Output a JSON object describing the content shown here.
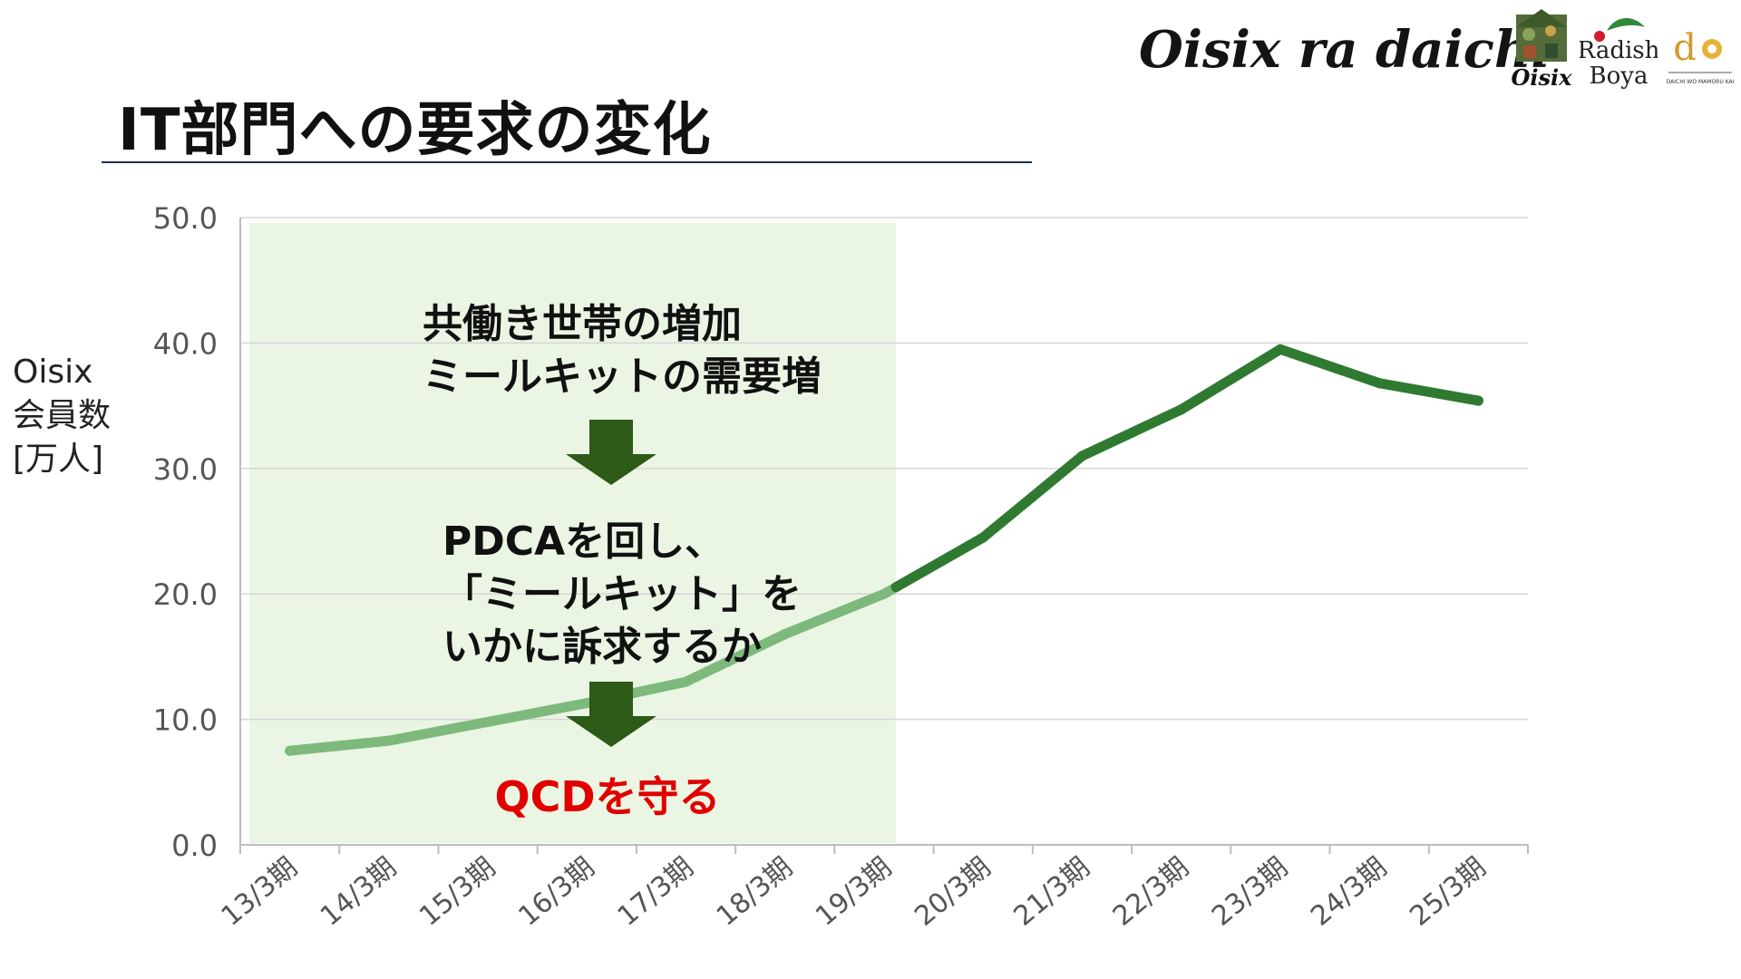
{
  "title": "IT部門への要求の変化",
  "brand": {
    "name": "Oisix ra daichi",
    "logos": [
      {
        "name": "oisix-logo",
        "text": "Oisix"
      },
      {
        "name": "radish-boya-logo",
        "text": "Radish Boya"
      },
      {
        "name": "daichi-logo",
        "text": "DAICHI WO MAMORU KAI"
      }
    ]
  },
  "chart_data": {
    "type": "line",
    "ylabel_lines": [
      "Oisix",
      "会員数",
      "[万人]"
    ],
    "categories": [
      "13/3期",
      "14/3期",
      "15/3期",
      "16/3期",
      "17/3期",
      "18/3期",
      "19/3期",
      "20/3期",
      "21/3期",
      "22/3期",
      "23/3期",
      "24/3期",
      "25/3期"
    ],
    "values": [
      7.5,
      8.3,
      9.8,
      11.3,
      13.0,
      16.8,
      20.0,
      24.5,
      31.0,
      34.7,
      39.5,
      36.8,
      35.4
    ],
    "ylim": [
      0,
      50
    ],
    "yticks": [
      "0.0",
      "10.0",
      "20.0",
      "30.0",
      "40.0",
      "50.0"
    ],
    "grid": true,
    "highlight_region": {
      "from_category": "13/3期",
      "to_category": "19/3期"
    },
    "colors": {
      "line": "#2f7a30",
      "line_highlighted": "#7db97c",
      "region": "#eaf6e3",
      "arrow": "#2d5a17",
      "accent_text": "#e00000"
    },
    "annotations": {
      "block1": [
        "共働き世帯の増加",
        "ミールキットの需要増"
      ],
      "block2": [
        "PDCAを回し、",
        "「ミールキット」を",
        "いかに訴求するか"
      ],
      "result": "QCDを守る"
    }
  }
}
